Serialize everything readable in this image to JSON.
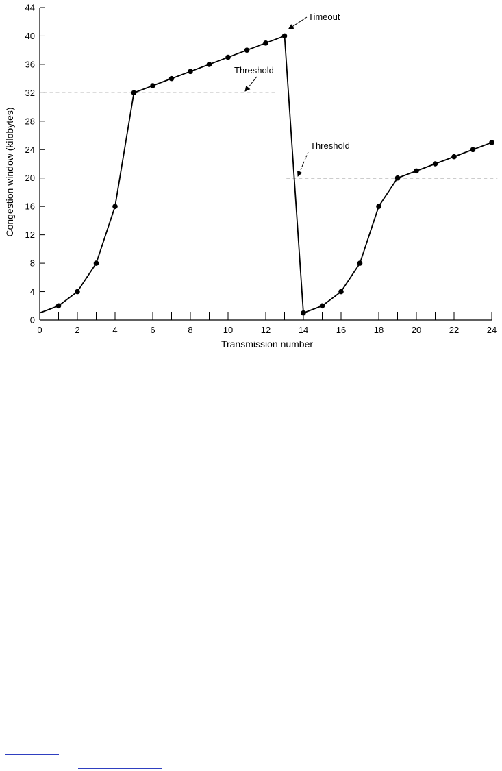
{
  "chart_data": {
    "type": "line",
    "title": "",
    "xlabel": "Transmission number",
    "ylabel": "Congestion window (kilobytes)",
    "xlim": [
      0,
      24
    ],
    "ylim": [
      0,
      44
    ],
    "x_ticks_major": [
      0,
      2,
      4,
      6,
      8,
      10,
      12,
      14,
      16,
      18,
      20,
      22,
      24
    ],
    "x_ticks_minor": [
      1,
      3,
      5,
      7,
      9,
      11,
      13,
      15,
      17,
      19,
      21,
      23
    ],
    "y_ticks": [
      0,
      4,
      8,
      12,
      16,
      20,
      24,
      28,
      32,
      36,
      40,
      44
    ],
    "grid": false,
    "series": [
      {
        "x": [
          0,
          1,
          2,
          3,
          4,
          5,
          6,
          7,
          8,
          9,
          10,
          11,
          12,
          13,
          14,
          15,
          16,
          17,
          18,
          19,
          20,
          21,
          22,
          23,
          24
        ],
        "values": [
          1,
          2,
          4,
          8,
          16,
          32,
          33,
          34,
          35,
          36,
          37,
          38,
          39,
          40,
          1,
          2,
          4,
          8,
          16,
          20,
          21,
          22,
          23,
          24,
          25
        ],
        "marker_start_index": 1
      }
    ],
    "thresholds": [
      {
        "label": "Threshold",
        "y": 32,
        "x_start": 0.2,
        "x_end": 12.5
      },
      {
        "label": "Threshold",
        "y": 20,
        "x_start": 13.1,
        "x_end": 24.3
      }
    ],
    "annotations": [
      {
        "text": "Timeout",
        "point": [
          13,
          40.5
        ]
      },
      {
        "text": "Threshold",
        "point": [
          11,
          32
        ]
      },
      {
        "text": "Threshold",
        "point": [
          13.5,
          20
        ]
      }
    ]
  }
}
